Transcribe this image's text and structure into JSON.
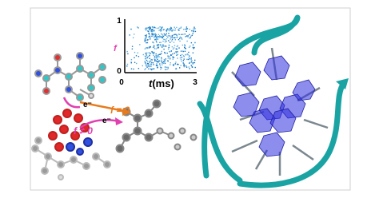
{
  "figure": {
    "raster_plot": {
      "y_axis": {
        "symbol": "f",
        "ticks": [
          "1",
          "0"
        ]
      },
      "x_axis": {
        "symbol": "t",
        "unit": "(ms)",
        "ticks": [
          "0",
          "3"
        ]
      }
    },
    "annotations": {
      "electron_1": "e⁻",
      "electron_2": "e⁻",
      "f_zero": "f = 0",
      "f_nonzero": "f ≠ 0"
    }
  }
}
